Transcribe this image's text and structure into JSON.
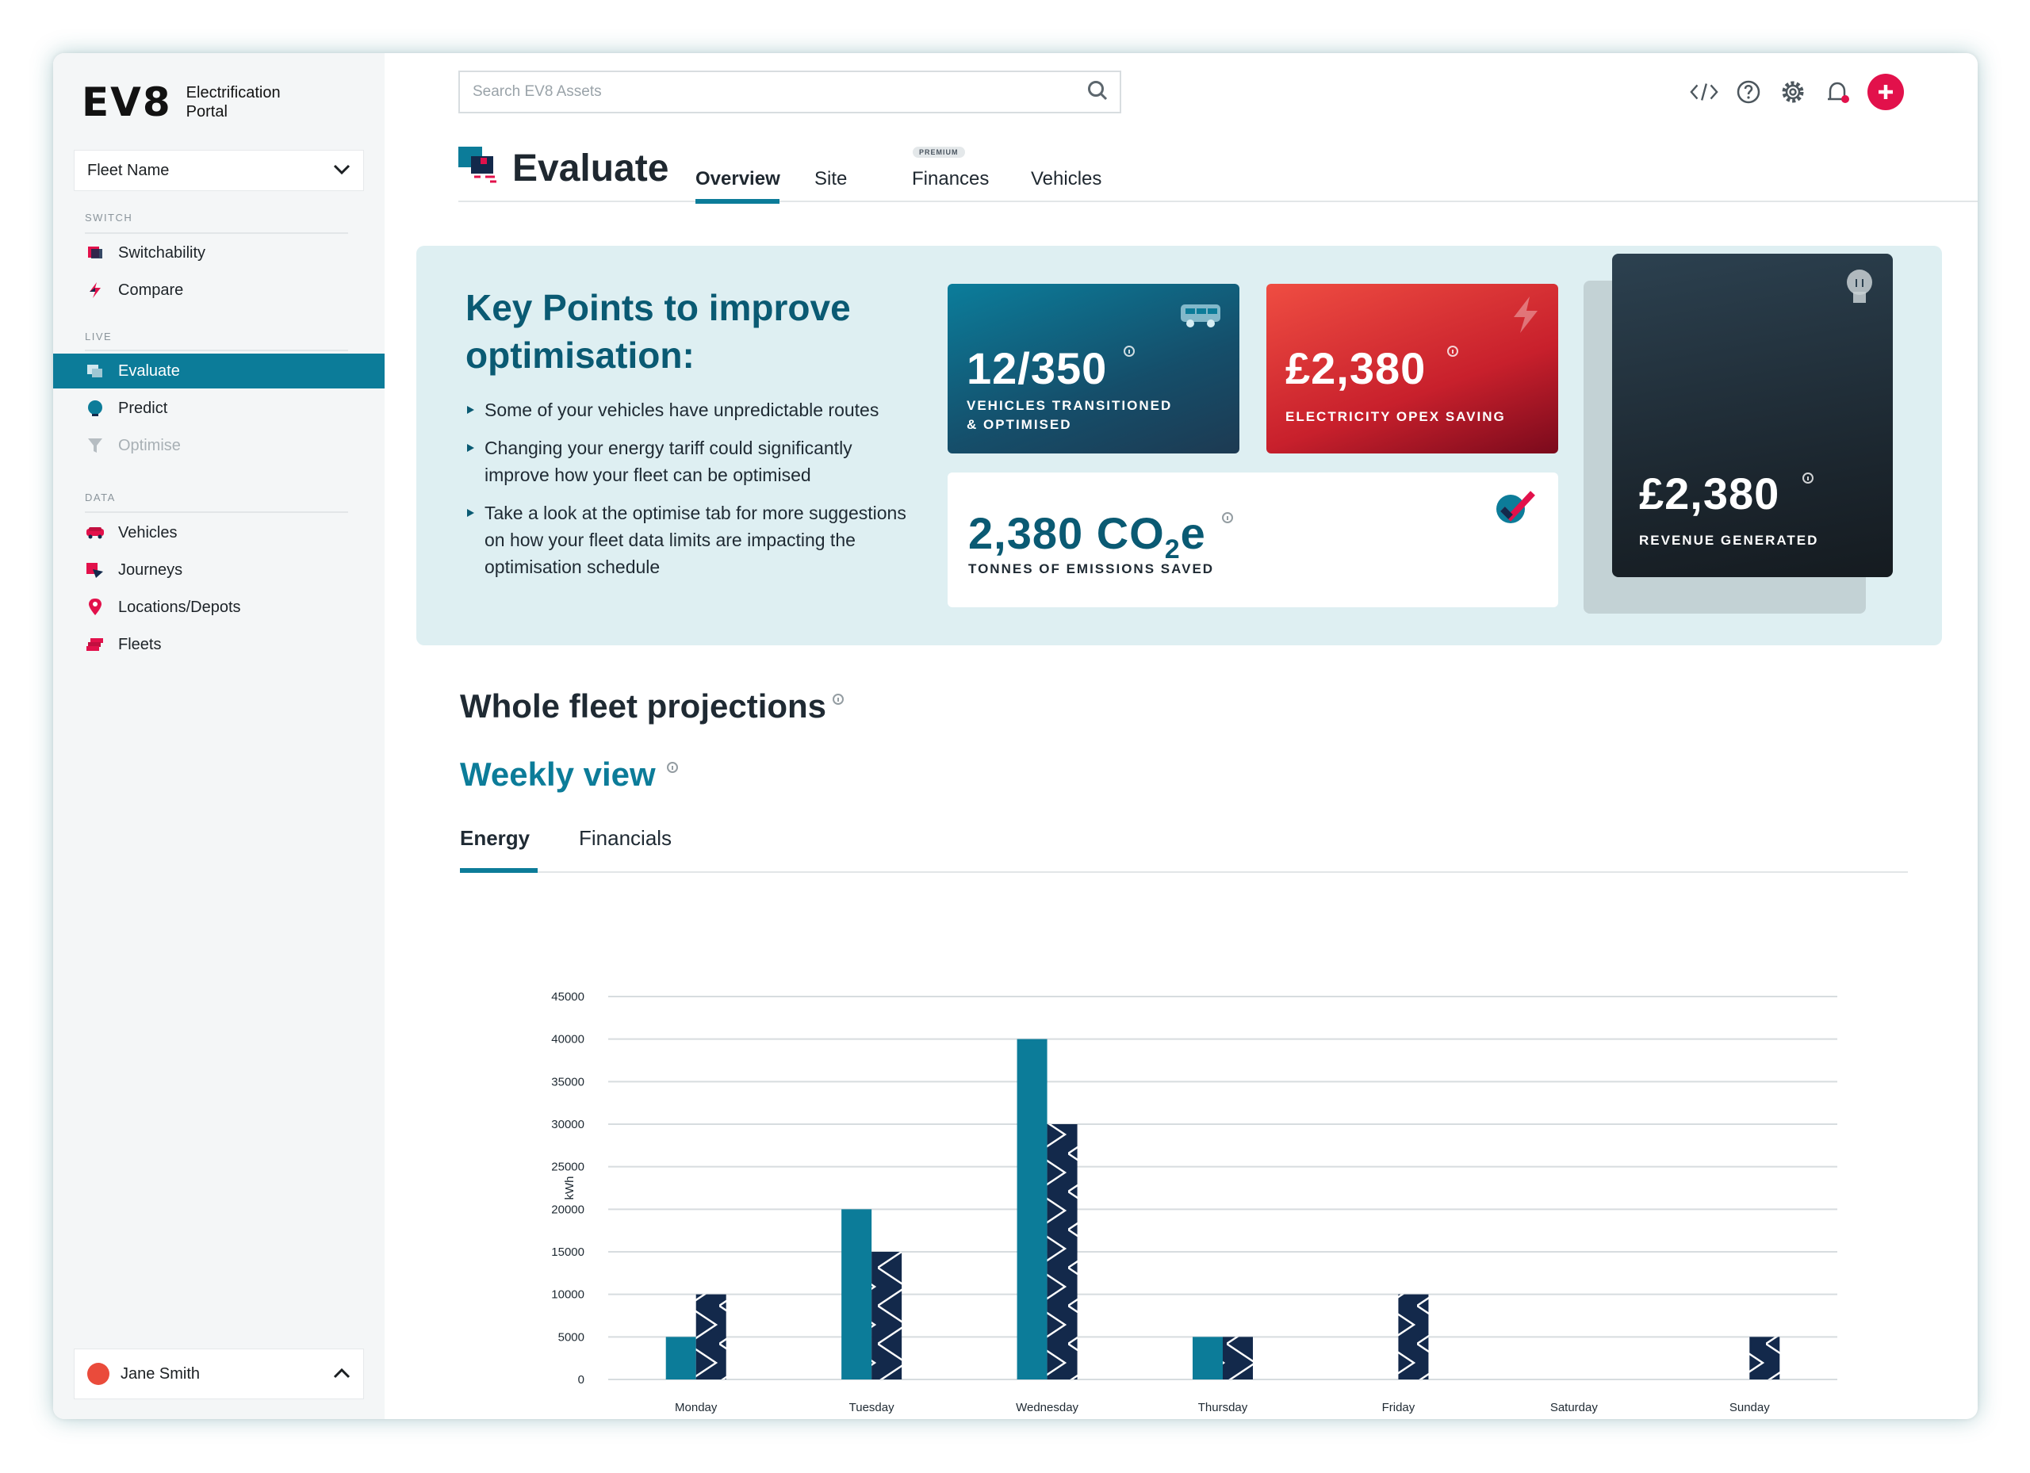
{
  "app": {
    "logo": "EV8",
    "logo_text_line1": "Electrification",
    "logo_text_line2": "Portal"
  },
  "sidebar": {
    "fleet_select": "Fleet Name",
    "sections": {
      "switch": "SWITCH",
      "live": "LIVE",
      "data": "DATA"
    },
    "items": [
      {
        "label": "Switchability",
        "icon": "switchability-icon"
      },
      {
        "label": "Compare",
        "icon": "bolt-icon"
      },
      {
        "label": "Evaluate",
        "icon": "evaluate-icon",
        "active": true
      },
      {
        "label": "Predict",
        "icon": "predict-icon"
      },
      {
        "label": "Optimise",
        "icon": "funnel-icon",
        "disabled": true
      },
      {
        "label": "Vehicles",
        "icon": "car-icon"
      },
      {
        "label": "Journeys",
        "icon": "journeys-icon"
      },
      {
        "label": "Locations/Depots",
        "icon": "location-pin-icon"
      },
      {
        "label": "Fleets",
        "icon": "fleets-icon"
      }
    ],
    "user_name": "Jane Smith"
  },
  "topbar": {
    "search_placeholder": "Search EV8 Assets",
    "icons": [
      "code-icon",
      "help-icon",
      "gear-icon",
      "notification-icon",
      "add-icon"
    ]
  },
  "page": {
    "title": "Evaluate",
    "tabs": [
      {
        "label": "Overview",
        "active": true
      },
      {
        "label": "Site"
      },
      {
        "label": "Finances",
        "badge": "PREMIUM"
      },
      {
        "label": "Vehicles"
      }
    ]
  },
  "key_points": {
    "title": "Key Points to improve optimisation:",
    "bullets": [
      "Some of your vehicles have unpredictable routes",
      "Changing your energy tariff could significantly improve how your fleet can be optimised",
      "Take a look at the optimise tab for more suggestions on how your fleet data limits are impacting the optimisation schedule"
    ],
    "cards": {
      "vehicles": {
        "value": "12/350",
        "label_line1": "VEHICLES TRANSITIONED",
        "label_line2": "& OPTIMISED"
      },
      "opex": {
        "value": "£2,380",
        "label": "ELECTRICITY OPEX SAVING"
      },
      "emissions": {
        "value": "2,380 CO",
        "subscript": "2",
        "suffix": "e",
        "label": "TONNES OF EMISSIONS SAVED"
      },
      "revenue": {
        "value": "£2,380",
        "label": "REVENUE GENERATED"
      }
    }
  },
  "projections": {
    "title": "Whole fleet projections",
    "weekly_title": "Weekly view",
    "sub_tabs": [
      {
        "label": "Energy",
        "active": true
      },
      {
        "label": "Financials"
      }
    ]
  },
  "chart_data": {
    "type": "bar",
    "categories": [
      "Monday",
      "Tuesday",
      "Wednesday",
      "Thursday",
      "Friday",
      "Saturday",
      "Sunday"
    ],
    "series": [
      {
        "values": [
          5000,
          20000,
          40000,
          5000,
          0,
          0,
          0
        ],
        "color": "#0c7c99",
        "pattern": "solid"
      },
      {
        "values": [
          10000,
          15000,
          30000,
          5000,
          10000,
          0,
          5000
        ],
        "color": "#13294b",
        "pattern": "chevron"
      }
    ],
    "ylabel": "kWh",
    "ylim": [
      0,
      45000
    ],
    "yticks": [
      0,
      5000,
      10000,
      15000,
      20000,
      25000,
      30000,
      35000,
      40000,
      45000
    ],
    "grid": true
  },
  "colors": {
    "brand_teal": "#0c7c99",
    "brand_navy": "#13294b",
    "accent_red": "#e2114b"
  }
}
